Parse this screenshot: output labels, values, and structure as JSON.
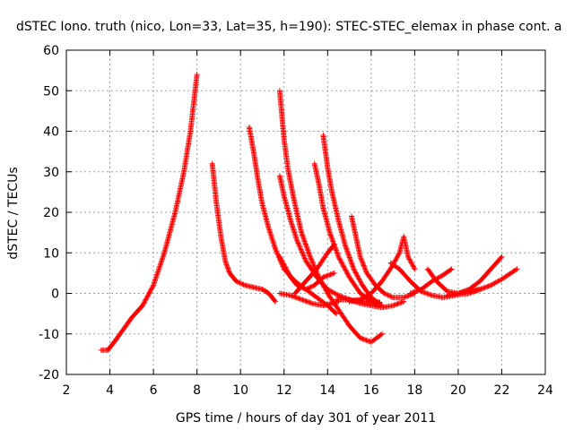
{
  "chart_data": {
    "type": "scatter",
    "title": "dSTEC Iono. truth (nico, Lon=33, Lat=35, h=190): STEC-STEC_elemax in phase cont. a",
    "xlabel": "GPS time / hours of day 301 of year 2011",
    "ylabel": "dSTEC  / TECUs",
    "xlim": [
      2,
      24
    ],
    "ylim": [
      -20,
      60
    ],
    "x_ticks": [
      "2",
      "4",
      "6",
      "8",
      "10",
      "12",
      "14",
      "16",
      "18",
      "20",
      "22",
      "24"
    ],
    "y_ticks": [
      "-20",
      "-10",
      "0",
      "10",
      "20",
      "30",
      "40",
      "50",
      "60"
    ],
    "grid": true,
    "marker": "+",
    "color": "#ff0000",
    "series": [
      {
        "x": [
          3.6,
          3.9,
          4.2,
          4.6,
          5.0,
          5.5,
          6.0,
          6.5,
          7.0,
          7.4,
          7.7,
          8.0
        ],
        "y": [
          -14,
          -14,
          -12,
          -9,
          -6,
          -3,
          2,
          10,
          20,
          30,
          40,
          54
        ]
      },
      {
        "x": [
          8.7,
          8.9,
          9.1,
          9.3,
          9.5,
          9.8,
          10.2,
          10.6,
          11.0,
          11.3,
          11.6
        ],
        "y": [
          32,
          22,
          14,
          8,
          5,
          3,
          2,
          1.5,
          1,
          0,
          -2
        ]
      },
      {
        "x": [
          10.4,
          10.6,
          10.8,
          11.0,
          11.3,
          11.6,
          12.0,
          12.5,
          13.0,
          13.5,
          14.0,
          14.4
        ],
        "y": [
          41,
          35,
          28,
          22,
          16,
          11,
          6,
          3,
          1,
          -1,
          -3,
          -5
        ]
      },
      {
        "x": [
          11.8,
          11.9,
          12.0,
          12.2,
          12.5,
          12.8,
          13.2,
          13.6,
          14.0,
          14.5,
          15.0,
          15.5,
          16.0,
          16.5
        ],
        "y": [
          50,
          44,
          38,
          30,
          22,
          15,
          9,
          4,
          0,
          -4,
          -8,
          -11,
          -12,
          -10
        ]
      },
      {
        "x": [
          11.8,
          12.0,
          12.3,
          12.6,
          13.0,
          13.5,
          14.0,
          14.5,
          15.0,
          15.5,
          16.0,
          16.5,
          17.0,
          17.5
        ],
        "y": [
          29,
          24,
          18,
          13,
          8,
          4,
          1,
          -0.5,
          -1.5,
          -2.5,
          -3,
          -3.5,
          -3,
          -2
        ]
      },
      {
        "x": [
          11.8,
          12.0,
          12.3,
          12.6,
          13.0,
          13.4,
          13.8,
          14.3
        ],
        "y": [
          9,
          7,
          4,
          2,
          1,
          2,
          4,
          5
        ]
      },
      {
        "x": [
          11.8,
          12.3,
          12.8,
          13.3,
          13.8,
          14.2,
          14.5
        ],
        "y": [
          0,
          -0.5,
          -1.5,
          -2.5,
          -3,
          -2.5,
          -2
        ]
      },
      {
        "x": [
          13.4,
          13.6,
          13.8,
          14.1,
          14.5,
          15.0,
          15.5,
          16.0,
          16.5
        ],
        "y": [
          32,
          27,
          21,
          15,
          9,
          4,
          0,
          -2,
          -3
        ]
      },
      {
        "x": [
          13.8,
          13.9,
          14.0,
          14.2,
          14.5,
          14.8,
          15.2,
          15.6,
          16.0,
          16.5
        ],
        "y": [
          39,
          35,
          31,
          25,
          18,
          12,
          6,
          2,
          -1,
          -3
        ]
      },
      {
        "x": [
          12.5,
          13.0,
          13.5,
          14.0,
          14.3
        ],
        "y": [
          0,
          3,
          6,
          10,
          12
        ]
      },
      {
        "x": [
          15.1,
          15.3,
          15.5,
          15.8,
          16.2,
          16.6,
          17.0,
          17.5,
          18.0
        ],
        "y": [
          19,
          14,
          9,
          5,
          2,
          0,
          -1,
          -1,
          0
        ]
      },
      {
        "x": [
          14.4,
          14.9,
          15.4,
          15.9,
          16.4
        ],
        "y": [
          -1.5,
          -1.6,
          -1.8,
          -2,
          -2.2
        ]
      },
      {
        "x": [
          15.0,
          15.5,
          16.0,
          16.5,
          17.0,
          17.3,
          17.5,
          17.7,
          18.0
        ],
        "y": [
          -2,
          -1.5,
          0,
          3,
          7,
          10,
          14,
          9,
          6
        ]
      },
      {
        "x": [
          16.9,
          17.3,
          17.8,
          18.3,
          18.8,
          19.3,
          19.8,
          20.5,
          21.0
        ],
        "y": [
          7.5,
          6,
          3,
          0.5,
          -0.5,
          -1,
          -0.5,
          0,
          1
        ]
      },
      {
        "x": [
          18.6,
          19.0,
          19.5,
          20.0,
          20.5,
          21.0,
          21.5,
          22.0
        ],
        "y": [
          6,
          3,
          0.5,
          0,
          1,
          3,
          6,
          9
        ]
      },
      {
        "x": [
          17.8,
          18.3,
          18.8,
          19.3,
          19.7
        ],
        "y": [
          0,
          1,
          3,
          4.5,
          6
        ]
      },
      {
        "x": [
          19.5,
          20.0,
          20.5,
          21.0,
          21.5,
          22.0,
          22.7
        ],
        "y": [
          -0.5,
          0,
          0.5,
          1,
          2,
          3.5,
          6
        ]
      }
    ]
  }
}
